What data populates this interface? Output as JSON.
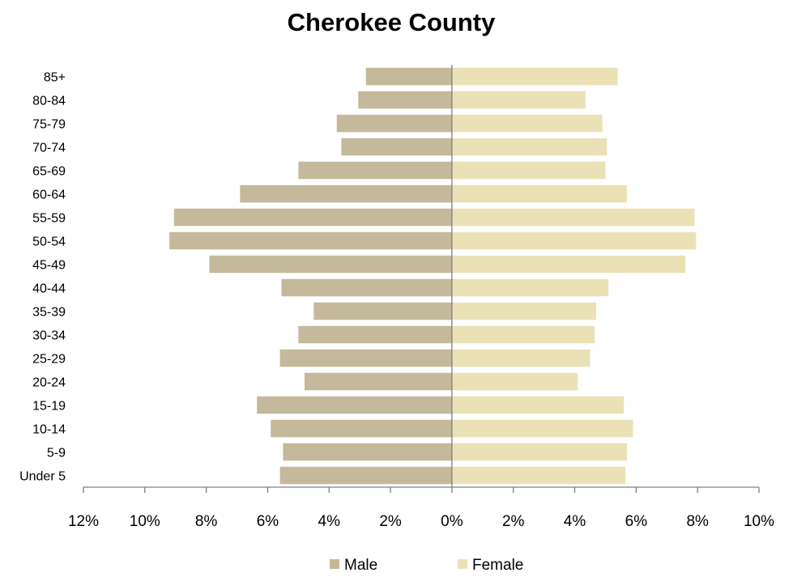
{
  "chart_data": {
    "type": "bar",
    "orientation": "horizontal-population-pyramid",
    "title": "Cherokee County",
    "categories": [
      "Under 5",
      "5-9",
      "10-14",
      "15-19",
      "20-24",
      "25-29",
      "30-34",
      "35-39",
      "40-44",
      "45-49",
      "50-54",
      "55-59",
      "60-64",
      "65-69",
      "70-74",
      "75-79",
      "80-84",
      "85+"
    ],
    "series": [
      {
        "name": "Male",
        "side": "left",
        "color": "#C4B99A",
        "values": [
          5.6,
          5.5,
          5.9,
          6.35,
          4.8,
          5.6,
          5.0,
          4.5,
          5.55,
          7.9,
          9.2,
          9.05,
          6.9,
          5.0,
          3.6,
          3.75,
          3.05,
          2.8
        ]
      },
      {
        "name": "Female",
        "side": "right",
        "color": "#EAE2B6",
        "values": [
          5.65,
          5.7,
          5.9,
          5.6,
          4.1,
          4.5,
          4.65,
          4.7,
          5.1,
          7.6,
          7.95,
          7.9,
          5.7,
          5.0,
          5.05,
          4.9,
          4.35,
          5.4
        ]
      }
    ],
    "xlim": [
      -12,
      10
    ],
    "xticks": [
      -12,
      -10,
      -8,
      -6,
      -4,
      -2,
      0,
      2,
      4,
      6,
      8,
      10
    ],
    "xtick_labels": [
      "12%",
      "10%",
      "8%",
      "6%",
      "4%",
      "2%",
      "0%",
      "2%",
      "4%",
      "6%",
      "8%",
      "10%"
    ],
    "xlabel": "",
    "ylabel": "",
    "grid": false,
    "legend_position": "bottom"
  }
}
